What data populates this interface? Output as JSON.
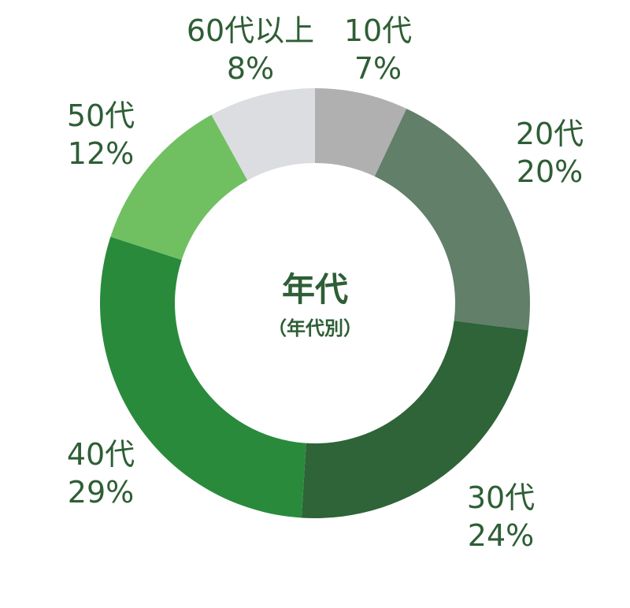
{
  "chart_data": {
    "type": "pie",
    "donut": true,
    "center_title": "年代",
    "center_subtitle": "（年代別）",
    "categories": [
      "10代",
      "20代",
      "30代",
      "40代",
      "50代",
      "60代以上"
    ],
    "values": [
      7,
      20,
      24,
      29,
      12,
      8
    ],
    "value_labels": [
      "7%",
      "20%",
      "24%",
      "29%",
      "12%",
      "8%"
    ],
    "colors": [
      "#b0b0b0",
      "#627f69",
      "#2e6437",
      "#2a8a3c",
      "#70c062",
      "#dcdde0"
    ],
    "label_color": "#2e5e35",
    "start": "top",
    "direction": "clockwise"
  }
}
